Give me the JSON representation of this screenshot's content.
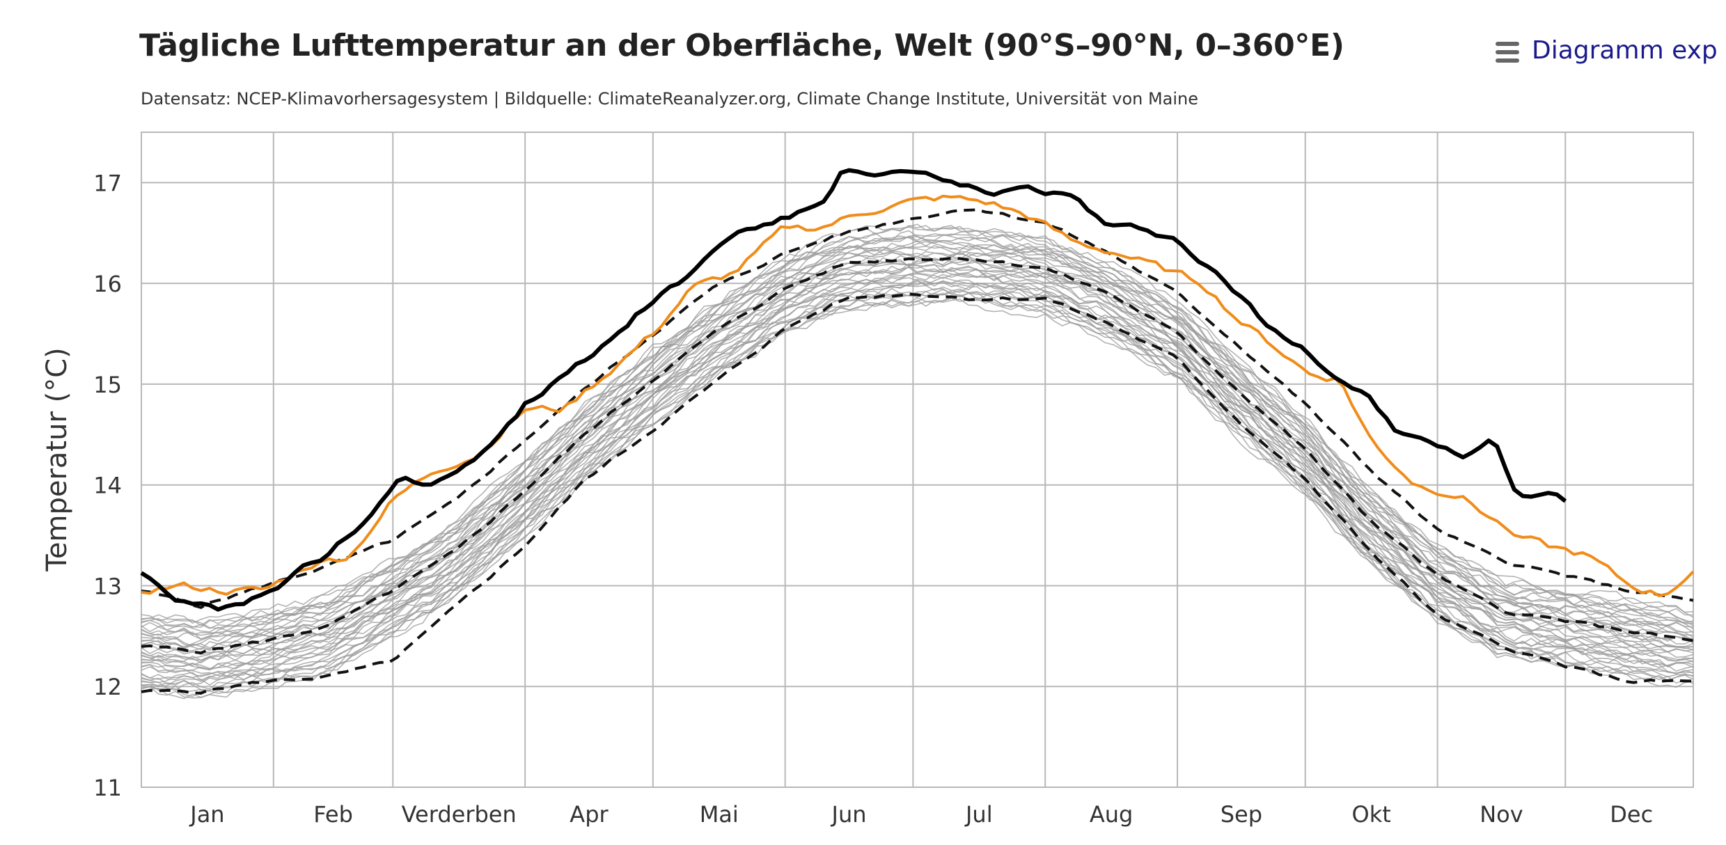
{
  "chart": {
    "title": "Tägliche Lufttemperatur an der Oberfläche, Welt (90°S–90°N, 0–360°E)",
    "subtitle": "Datensatz: NCEP-Klimavorhersagesystem | Bildquelle: ClimateReanalyzer.org, Climate Change Institute, Universität von Maine",
    "export_label": "Diagramm exp",
    "ylabel": "Temperatur (°C)"
  },
  "chart_data": {
    "type": "line",
    "title": "Tägliche Lufttemperatur an der Oberfläche, Welt (90°S–90°N, 0–360°E)",
    "xlabel": "",
    "ylabel": "Temperatur (°C)",
    "ylim": [
      11,
      17.5
    ],
    "yticks": [
      11,
      12,
      13,
      14,
      15,
      16,
      17
    ],
    "x_domain": [
      "Jan 1",
      "Dec 31"
    ],
    "x_tick_labels": [
      "Jan",
      "Feb",
      "Verderben",
      "Apr",
      "Mai",
      "Jun",
      "Jul",
      "Aug",
      "Sep",
      "Okt",
      "Nov",
      "Dec"
    ],
    "grid": true,
    "legend": "none",
    "colors": {
      "current_year": "#000000",
      "previous_year": "#f08c1a",
      "other_years": "#9a9a9a",
      "climatology_bands": "#111111"
    },
    "series": [
      {
        "style": "solid-black-thick",
        "x_day": [
          1,
          10,
          20,
          30,
          38,
          45,
          55,
          62,
          70,
          80,
          91,
          100,
          110,
          121,
          130,
          140,
          152,
          160,
          166,
          172,
          182,
          190,
          200,
          210,
          220,
          228,
          236,
          243,
          250,
          258,
          266,
          273,
          280,
          288,
          296,
          305,
          312,
          318,
          324,
          330,
          335
        ],
        "values": [
          13.15,
          12.85,
          12.75,
          12.9,
          13.15,
          13.3,
          13.7,
          14.1,
          14.0,
          14.3,
          14.8,
          15.1,
          15.4,
          15.85,
          16.1,
          16.5,
          16.65,
          16.75,
          17.15,
          17.05,
          17.1,
          17.0,
          16.9,
          16.95,
          16.85,
          16.55,
          16.55,
          16.45,
          16.2,
          15.9,
          15.55,
          15.4,
          15.1,
          14.9,
          14.5,
          14.4,
          14.25,
          14.5,
          13.85,
          13.95,
          13.85
        ]
      },
      {
        "style": "solid-orange",
        "x_day": [
          1,
          10,
          20,
          30,
          40,
          50,
          60,
          70,
          80,
          91,
          100,
          110,
          121,
          130,
          140,
          152,
          160,
          170,
          180,
          190,
          200,
          210,
          220,
          230,
          240,
          250,
          258,
          266,
          275,
          282,
          290,
          300,
          310,
          320,
          330,
          340,
          350,
          358,
          365
        ],
        "values": [
          12.95,
          13.0,
          12.95,
          12.95,
          13.2,
          13.3,
          13.85,
          14.15,
          14.3,
          14.75,
          14.75,
          15.1,
          15.5,
          15.95,
          16.1,
          16.55,
          16.55,
          16.7,
          16.8,
          16.85,
          16.8,
          16.65,
          16.4,
          16.3,
          16.15,
          16.0,
          15.65,
          15.4,
          15.1,
          15.05,
          14.4,
          14.0,
          13.9,
          13.6,
          13.4,
          13.3,
          13.0,
          12.9,
          13.15
        ]
      },
      {
        "style": "dashed-upper",
        "x_day": [
          1,
          15,
          30,
          45,
          60,
          75,
          91,
          105,
          121,
          135,
          152,
          166,
          182,
          196,
          213,
          228,
          244,
          258,
          274,
          288,
          305,
          320,
          335,
          350,
          365
        ],
        "values": [
          12.95,
          12.8,
          13.0,
          13.2,
          13.45,
          13.85,
          14.45,
          14.95,
          15.5,
          15.95,
          16.3,
          16.5,
          16.65,
          16.75,
          16.6,
          16.3,
          15.9,
          15.4,
          14.8,
          14.2,
          13.55,
          13.25,
          13.1,
          12.95,
          12.85
        ]
      },
      {
        "style": "dashed-middle",
        "x_day": [
          1,
          15,
          30,
          45,
          60,
          75,
          91,
          105,
          121,
          135,
          152,
          166,
          182,
          196,
          213,
          228,
          244,
          258,
          274,
          288,
          305,
          320,
          335,
          350,
          365
        ],
        "values": [
          12.4,
          12.35,
          12.45,
          12.6,
          12.95,
          13.35,
          13.95,
          14.5,
          15.05,
          15.5,
          15.95,
          16.2,
          16.25,
          16.25,
          16.15,
          15.9,
          15.5,
          14.95,
          14.35,
          13.7,
          13.1,
          12.75,
          12.65,
          12.55,
          12.45
        ]
      },
      {
        "style": "dashed-lower",
        "x_day": [
          1,
          15,
          30,
          45,
          60,
          75,
          91,
          105,
          121,
          135,
          152,
          166,
          182,
          196,
          213,
          228,
          244,
          258,
          274,
          288,
          305,
          320,
          335,
          350,
          365
        ],
        "values": [
          11.95,
          11.95,
          12.05,
          12.1,
          12.25,
          12.8,
          13.4,
          14.05,
          14.55,
          15.0,
          15.55,
          15.85,
          15.9,
          15.85,
          15.85,
          15.6,
          15.25,
          14.65,
          14.05,
          13.4,
          12.7,
          12.4,
          12.2,
          12.05,
          12.05
        ]
      }
    ]
  }
}
